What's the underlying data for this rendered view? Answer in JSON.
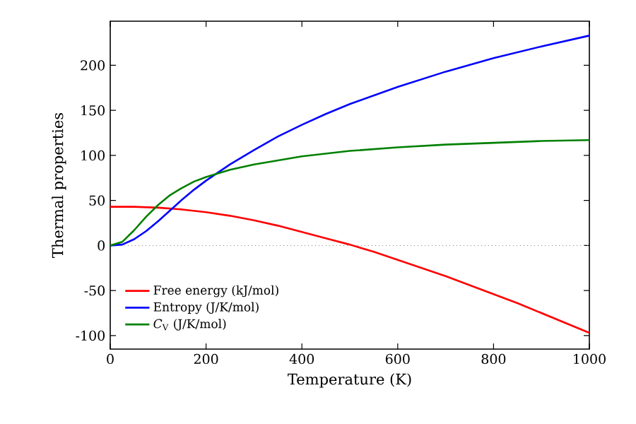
{
  "chart_data": {
    "type": "line",
    "xlabel": "Temperature (K)",
    "ylabel": "Thermal properties",
    "xlim": [
      0,
      1000
    ],
    "ylim": [
      -115,
      249
    ],
    "xticks": [
      0,
      200,
      400,
      600,
      800,
      1000
    ],
    "yticks": [
      -100,
      -50,
      0,
      50,
      100,
      150,
      200
    ],
    "grid": false,
    "legend": "bottom left",
    "marker": "none",
    "line_style": "solid",
    "ref_lines": [
      {
        "axis": "y",
        "value": 0,
        "color": "#808080",
        "line_style": "dotted"
      }
    ],
    "series": [
      {
        "name": "Free energy (kJ/mol)",
        "color": "#ff0000",
        "x": [
          0,
          50,
          100,
          150,
          200,
          250,
          300,
          350,
          400,
          450,
          500,
          550,
          600,
          650,
          700,
          750,
          800,
          850,
          900,
          950,
          1000
        ],
        "values": [
          43,
          43,
          42,
          40,
          37,
          33,
          28,
          22,
          15,
          8,
          1,
          -7,
          -16,
          -25,
          -34,
          -44,
          -54,
          -64,
          -75,
          -86,
          -97
        ]
      },
      {
        "name": "Entropy (J/K/mol)",
        "color": "#0000ff",
        "x": [
          0,
          25,
          50,
          75,
          100,
          125,
          150,
          175,
          200,
          225,
          250,
          300,
          350,
          400,
          450,
          500,
          600,
          700,
          800,
          900,
          1000
        ],
        "values": [
          0,
          1,
          7,
          16,
          27,
          39,
          51,
          62,
          72,
          81,
          90,
          106,
          121,
          134,
          146,
          157,
          176,
          193,
          208,
          221,
          233
        ]
      },
      {
        "name": "*C*$_{V}$ (J/K/mol)",
        "color": "#008000",
        "x": [
          0,
          25,
          50,
          75,
          100,
          125,
          150,
          175,
          200,
          250,
          300,
          400,
          500,
          600,
          700,
          800,
          900,
          1000
        ],
        "values": [
          0,
          4,
          17,
          32,
          45,
          56,
          64,
          71,
          76,
          84,
          90,
          99,
          105,
          109,
          112,
          114,
          116,
          117
        ]
      }
    ]
  }
}
